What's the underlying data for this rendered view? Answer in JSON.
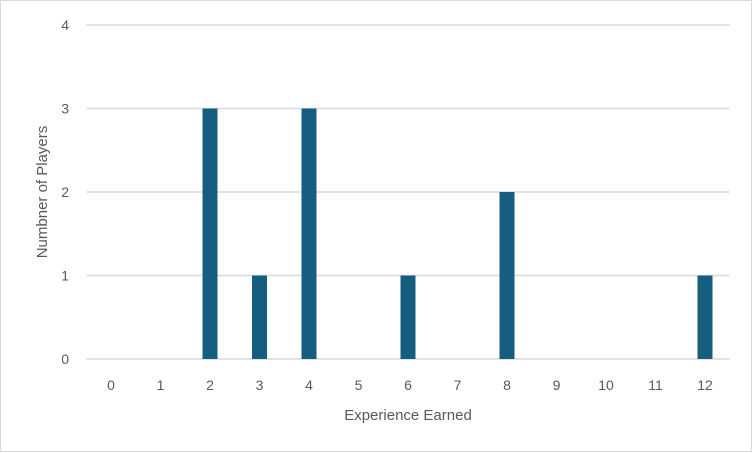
{
  "chart_data": {
    "type": "bar",
    "title": "",
    "xlabel": "Experience Earned",
    "ylabel": "Numbner of Players",
    "categories": [
      "0",
      "1",
      "2",
      "3",
      "4",
      "5",
      "6",
      "7",
      "8",
      "9",
      "10",
      "11",
      "12"
    ],
    "values": [
      0,
      0,
      3,
      1,
      3,
      0,
      1,
      0,
      2,
      0,
      0,
      0,
      1
    ],
    "ylim": [
      0,
      4
    ],
    "yticks": [
      "0",
      "1",
      "2",
      "3",
      "4"
    ],
    "grid": true,
    "legend": "none",
    "bar_color": "#165E80",
    "grid_color": "#D9D9D9"
  }
}
